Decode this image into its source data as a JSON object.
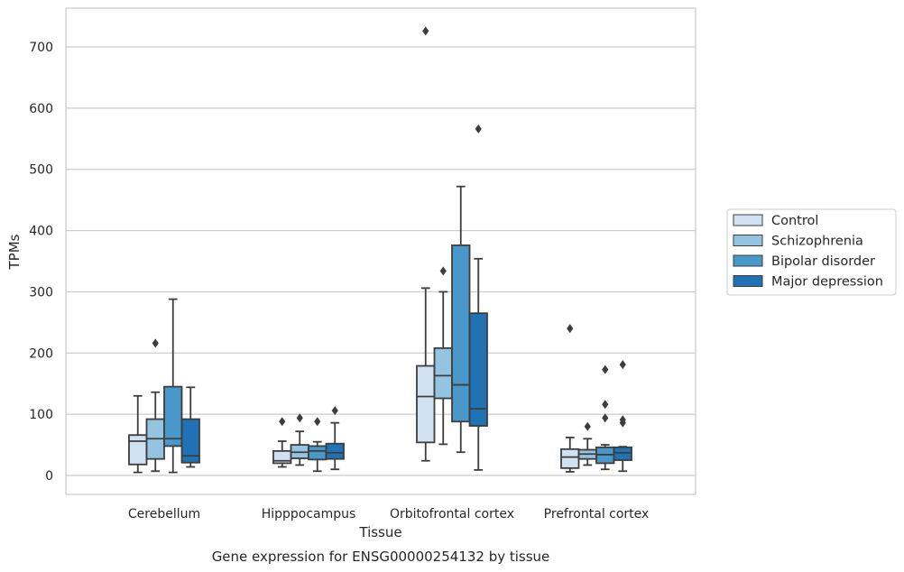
{
  "chart_data": {
    "type": "box",
    "xlabel": "Tissue",
    "ylabel": "TPMs",
    "caption": "Gene expression for ENSG00000254132 by tissue",
    "ylim": [
      -30,
      765
    ],
    "yticks": [
      0,
      100,
      200,
      300,
      400,
      500,
      600,
      700
    ],
    "grid": "horizontal",
    "legend_position": "right",
    "categories": [
      "Cerebellum",
      "Hipppocampus",
      "Orbitofrontal cortex",
      "Prefrontal cortex"
    ],
    "series": [
      {
        "name": "Control",
        "color": "#d0e1f2",
        "boxes": [
          {
            "whislo": 5,
            "q1": 18,
            "med": 56,
            "q3": 66,
            "whishi": 130,
            "fliers": []
          },
          {
            "whislo": 14,
            "q1": 20,
            "med": 24,
            "q3": 40,
            "whishi": 56,
            "fliers": [
              88
            ]
          },
          {
            "whislo": 24,
            "q1": 54,
            "med": 129,
            "q3": 179,
            "whishi": 306,
            "fliers": [
              726
            ]
          },
          {
            "whislo": 6,
            "q1": 12,
            "med": 30,
            "q3": 43,
            "whishi": 62,
            "fliers": [
              240
            ]
          }
        ]
      },
      {
        "name": "Schizophrenia",
        "color": "#94c4df",
        "boxes": [
          {
            "whislo": 7,
            "q1": 27,
            "med": 60,
            "q3": 92,
            "whishi": 136,
            "fliers": [
              216
            ]
          },
          {
            "whislo": 17,
            "q1": 28,
            "med": 38,
            "q3": 50,
            "whishi": 72,
            "fliers": [
              94
            ]
          },
          {
            "whislo": 51,
            "q1": 126,
            "med": 163,
            "q3": 208,
            "whishi": 300,
            "fliers": [
              334
            ]
          },
          {
            "whislo": 17,
            "q1": 27,
            "med": 35,
            "q3": 42,
            "whishi": 60,
            "fliers": [
              80
            ]
          }
        ]
      },
      {
        "name": "Bipolar disorder",
        "color": "#4a98c9",
        "boxes": [
          {
            "whislo": 5,
            "q1": 48,
            "med": 60,
            "q3": 145,
            "whishi": 288,
            "fliers": []
          },
          {
            "whislo": 7,
            "q1": 26,
            "med": 40,
            "q3": 48,
            "whishi": 55,
            "fliers": [
              88
            ]
          },
          {
            "whislo": 38,
            "q1": 88,
            "med": 148,
            "q3": 376,
            "whishi": 472,
            "fliers": []
          },
          {
            "whislo": 10,
            "q1": 20,
            "med": 34,
            "q3": 46,
            "whishi": 50,
            "fliers": [
              94,
              116,
              173
            ]
          }
        ]
      },
      {
        "name": "Major depression",
        "color": "#2171b5",
        "boxes": [
          {
            "whislo": 14,
            "q1": 21,
            "med": 32,
            "q3": 92,
            "whishi": 144,
            "fliers": []
          },
          {
            "whislo": 10,
            "q1": 27,
            "med": 37,
            "q3": 52,
            "whishi": 86,
            "fliers": [
              106
            ]
          },
          {
            "whislo": 9,
            "q1": 81,
            "med": 109,
            "q3": 265,
            "whishi": 354,
            "fliers": [
              566
            ]
          },
          {
            "whislo": 7,
            "q1": 25,
            "med": 37,
            "q3": 46,
            "whishi": 47,
            "fliers": [
              86,
              91,
              181
            ]
          }
        ]
      }
    ]
  }
}
